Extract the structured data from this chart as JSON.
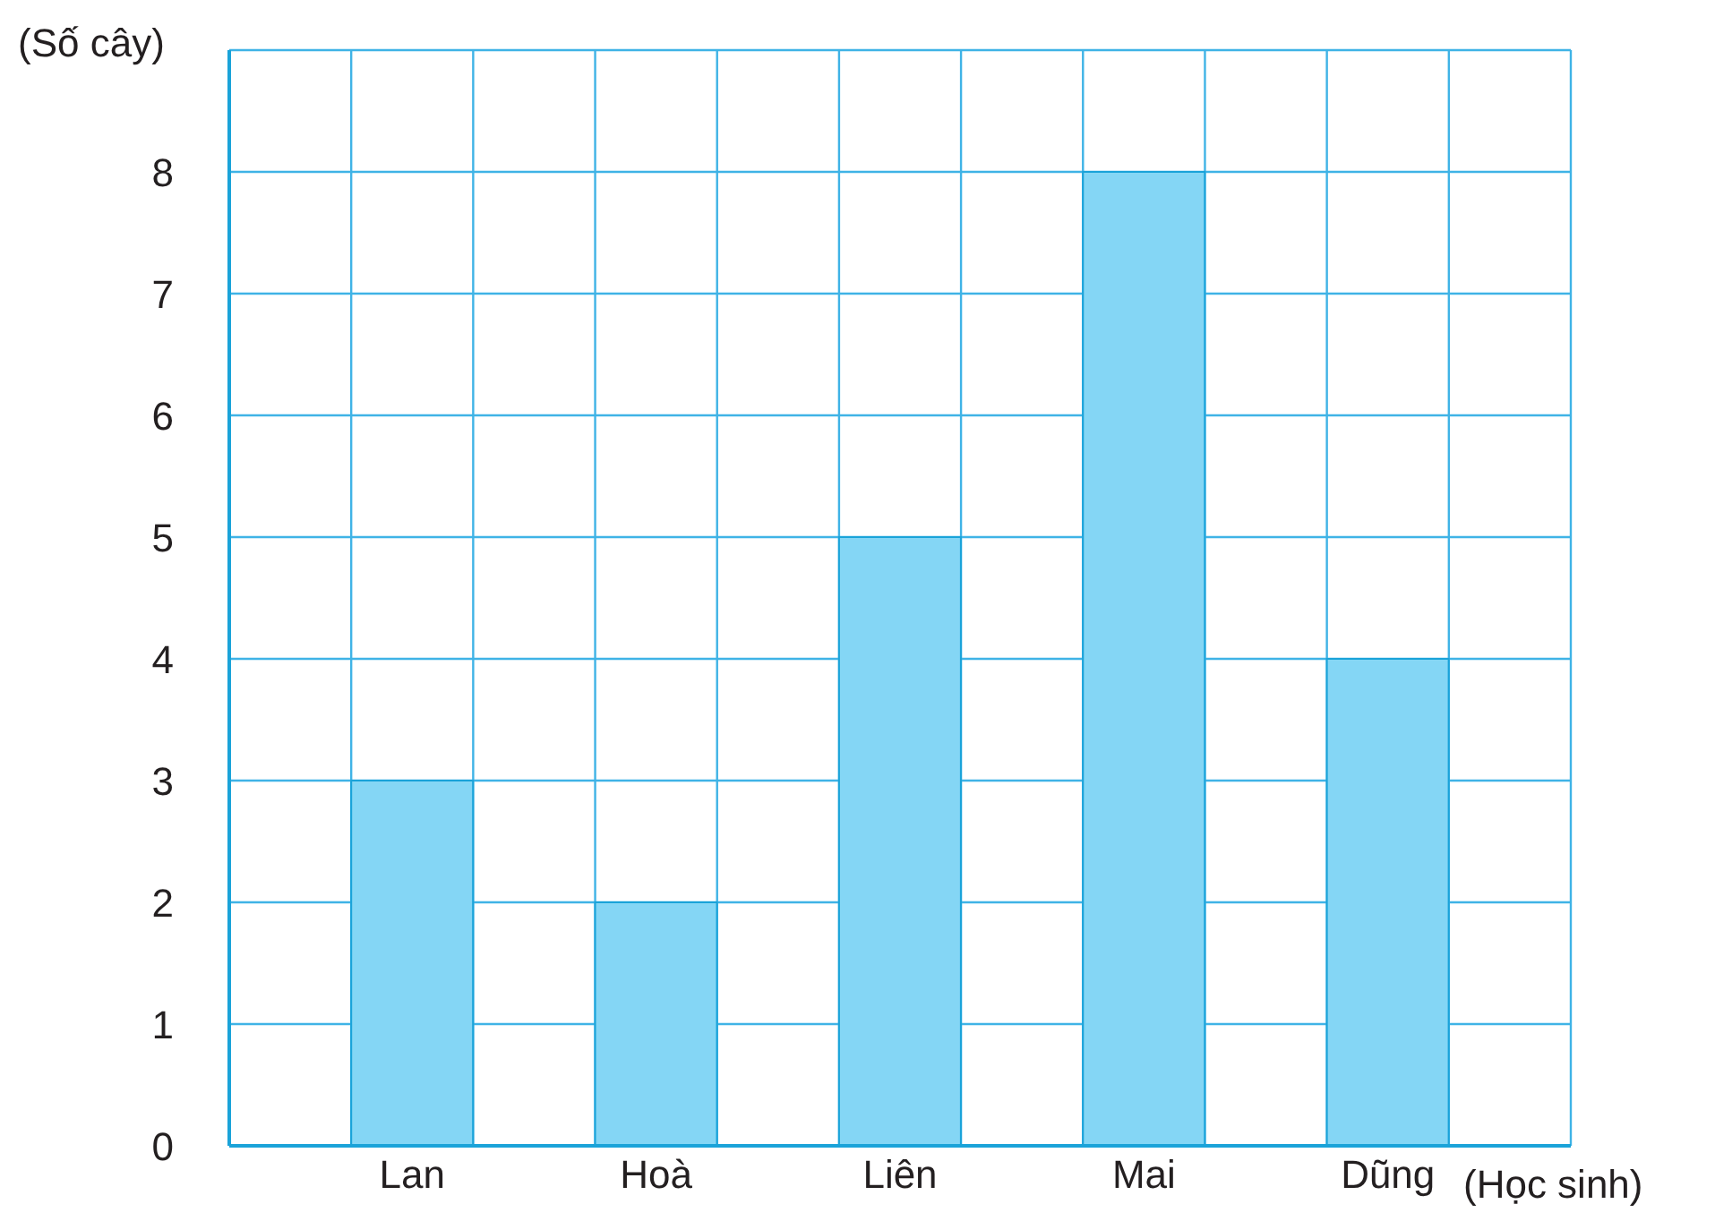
{
  "chart_data": {
    "type": "bar",
    "xlabel": "(Học sinh)",
    "ylabel": "(Số cây)",
    "categories": [
      "Lan",
      "Hoà",
      "Liên",
      "Mai",
      "Dũng"
    ],
    "values": [
      3,
      2,
      5,
      8,
      4
    ],
    "color": "#84d6f5",
    "ylim": [
      0,
      9
    ],
    "yticks": [
      0,
      1,
      2,
      3,
      4,
      5,
      6,
      7,
      8
    ],
    "grid": true
  }
}
